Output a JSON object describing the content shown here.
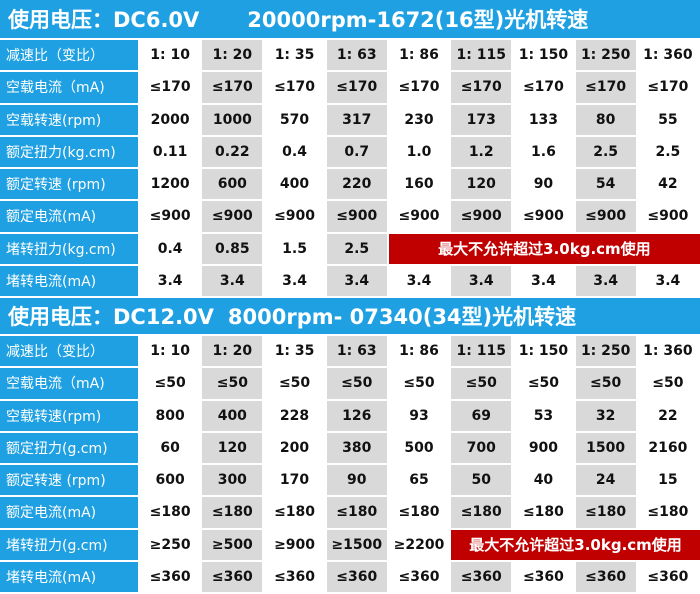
{
  "sections": [
    {
      "title": "使用电压：DC6.0V",
      "subtitle": "20000rpm-1672(16型)光机转速",
      "rows": [
        {
          "label": "减速比（变比）",
          "cells": [
            "1: 10",
            "1: 20",
            "1: 35",
            "1: 63",
            "1: 86",
            "1: 115",
            "1: 150",
            "1: 250",
            "1: 360"
          ]
        },
        {
          "label": "空载电流（mA)",
          "cells": [
            "≤170",
            "≤170",
            "≤170",
            "≤170",
            "≤170",
            "≤170",
            "≤170",
            "≤170",
            "≤170"
          ]
        },
        {
          "label": "空载转速(rpm)",
          "cells": [
            "2000",
            "1000",
            "570",
            "317",
            "230",
            "173",
            "133",
            "80",
            "55"
          ]
        },
        {
          "label": "额定扭力(kg.cm)",
          "cells": [
            "0.11",
            "0.22",
            "0.4",
            "0.7",
            "1.0",
            "1.2",
            "1.6",
            "2.5",
            "2.5"
          ]
        },
        {
          "label": "额定转速 (rpm)",
          "cells": [
            "1200",
            "600",
            "400",
            "220",
            "160",
            "120",
            "90",
            "54",
            "42"
          ]
        },
        {
          "label": "额定电流(mA)",
          "cells": [
            "≤900",
            "≤900",
            "≤900",
            "≤900",
            "≤900",
            "≤900",
            "≤900",
            "≤900",
            "≤900"
          ]
        },
        {
          "label": "堵转扭力(kg.cm)",
          "cells": [
            "0.4",
            "0.85",
            "1.5",
            "2.5"
          ],
          "note": "最大不允许超过3.0kg.cm使用"
        },
        {
          "label": "堵转电流(mA)",
          "cells": [
            "3.4",
            "3.4",
            "3.4",
            "3.4",
            "3.4",
            "3.4",
            "3.4",
            "3.4",
            "3.4"
          ]
        }
      ]
    },
    {
      "title": "使用电压：DC12.0V",
      "subtitle": "8000rpm- 07340(34型)光机转速",
      "rows": [
        {
          "label": "减速比（变比）",
          "cells": [
            "1: 10",
            "1: 20",
            "1: 35",
            "1: 63",
            "1: 86",
            "1: 115",
            "1: 150",
            "1: 250",
            "1: 360"
          ]
        },
        {
          "label": "空载电流（mA)",
          "cells": [
            "≤50",
            "≤50",
            "≤50",
            "≤50",
            "≤50",
            "≤50",
            "≤50",
            "≤50",
            "≤50"
          ]
        },
        {
          "label": "空载转速(rpm)",
          "cells": [
            "800",
            "400",
            "228",
            "126",
            "93",
            "69",
            "53",
            "32",
            "22"
          ]
        },
        {
          "label": "额定扭力(g.cm)",
          "cells": [
            "60",
            "120",
            "200",
            "380",
            "500",
            "700",
            "900",
            "1500",
            "2160"
          ]
        },
        {
          "label": "额定转速 (rpm)",
          "cells": [
            "600",
            "300",
            "170",
            "90",
            "65",
            "50",
            "40",
            "24",
            "15"
          ]
        },
        {
          "label": "额定电流(mA)",
          "cells": [
            "≤180",
            "≤180",
            "≤180",
            "≤180",
            "≤180",
            "≤180",
            "≤180",
            "≤180",
            "≤180"
          ]
        },
        {
          "label": "堵转扭力(g.cm)",
          "cells": [
            "≥250",
            "≥500",
            "≥900",
            "≥1500",
            "≥2200"
          ],
          "note": "最大不允许超过3.0kg.cm使用"
        },
        {
          "label": "堵转电流(mA)",
          "cells": [
            "≤360",
            "≤360",
            "≤360",
            "≤360",
            "≤360",
            "≤360",
            "≤360",
            "≤360",
            "≤360"
          ]
        }
      ]
    }
  ]
}
